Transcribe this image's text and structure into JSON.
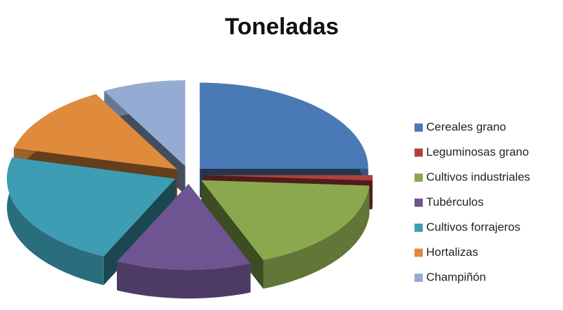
{
  "chart_data": {
    "type": "pie3d",
    "title": "Toneladas",
    "categories": [
      "Cereales grano",
      "Leguminosas grano",
      "Cultivos industriales",
      "Tubérculos",
      "Cultivos forrajeros",
      "Hortalizas",
      "Champiñón"
    ],
    "values": [
      25,
      1,
      18,
      13,
      22,
      13,
      8
    ],
    "colors": [
      "#4a7ab5",
      "#b0413e",
      "#8aa84e",
      "#6e5490",
      "#3c9db3",
      "#e08a3c",
      "#94abd3"
    ],
    "legend": "right"
  }
}
